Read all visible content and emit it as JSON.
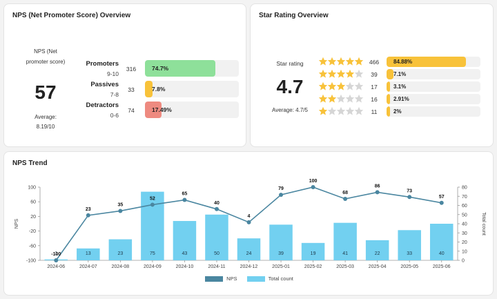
{
  "nps_card": {
    "title": "NPS (Net Promoter Score) Overview",
    "score_label": "NPS (Net promoter score)",
    "score": "57",
    "average_label": "Average:",
    "average_value": "8.19/10",
    "segments": [
      {
        "name": "Promoters",
        "range": "9-10",
        "count": "316",
        "percent_label": "74.7%",
        "fraction": 0.747,
        "color": "#8ee09a"
      },
      {
        "name": "Passives",
        "range": "7-8",
        "count": "33",
        "percent_label": "7.8%",
        "fraction": 0.078,
        "color": "#f8c23a"
      },
      {
        "name": "Detractors",
        "range": "0-6",
        "count": "74",
        "percent_label": "17.49%",
        "fraction": 0.1749,
        "color": "#ee8a80"
      }
    ]
  },
  "star_card": {
    "title": "Star Rating Overview",
    "label": "Star rating",
    "score": "4.7",
    "average_label": "Average: 4.7/5",
    "star_color": "#f8c23a",
    "empty_star_color": "#d6d6d6",
    "rows": [
      {
        "stars": 5,
        "count": "466",
        "percent_label": "84.88%",
        "fraction": 0.8488
      },
      {
        "stars": 4,
        "count": "39",
        "percent_label": "7.1%",
        "fraction": 0.071
      },
      {
        "stars": 3,
        "count": "17",
        "percent_label": "3.1%",
        "fraction": 0.031
      },
      {
        "stars": 2,
        "count": "16",
        "percent_label": "2.91%",
        "fraction": 0.0291
      },
      {
        "stars": 1,
        "count": "11",
        "percent_label": "2%",
        "fraction": 0.02
      }
    ]
  },
  "trend_card": {
    "title": "NPS Trend",
    "legend": {
      "nps": "NPS",
      "total": "Total count"
    }
  },
  "chart_data": {
    "type": "bar",
    "title": "NPS Trend",
    "categories": [
      "2024-06",
      "2024-07",
      "2024-08",
      "2024-09",
      "2024-10",
      "2024-11",
      "2024-12",
      "2025-01",
      "2025-02",
      "2025-03",
      "2025-04",
      "2025-05",
      "2025-06"
    ],
    "series": [
      {
        "name": "NPS",
        "type": "line",
        "axis": "left",
        "color": "#4a86a0",
        "values": [
          -100,
          23,
          35,
          52,
          65,
          40,
          4,
          79,
          100,
          68,
          86,
          73,
          57
        ]
      },
      {
        "name": "Total count",
        "type": "bar",
        "axis": "right",
        "color": "#72d0f0",
        "values": [
          1,
          13,
          23,
          75,
          43,
          50,
          24,
          39,
          19,
          41,
          22,
          33,
          40
        ]
      }
    ],
    "ylabel": "NPS",
    "y2label": "Total count",
    "ylim": [
      -100,
      100
    ],
    "y2lim": [
      0,
      80
    ],
    "yticks": [
      100,
      60,
      20,
      -20,
      -60,
      -100
    ],
    "y2ticks": [
      80,
      70,
      60,
      50,
      40,
      30,
      20,
      10,
      0
    ],
    "legend_position": "bottom"
  }
}
